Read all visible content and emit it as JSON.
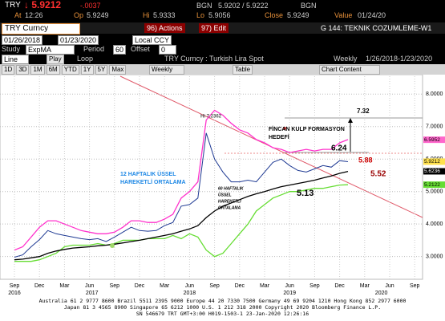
{
  "header": {
    "ticker": "TRY",
    "price": "↓ 5.9212",
    "change": "-.0037",
    "bid_source": "BGN",
    "bid_ask": "5.9202 / 5.9222",
    "ask_source": "BGN",
    "time_label": "At",
    "time": "12:26",
    "open_label": "Op",
    "open": "5.9249",
    "high_label": "Hi",
    "high": "5.9333",
    "low_label": "Lo",
    "low": "5.9056",
    "close_label": "Close",
    "close": "5.9249",
    "value_label": "Value",
    "value_date": "01/24/20"
  },
  "toolbar": {
    "security": "TRY Curncy",
    "actions": "96) Actions",
    "edit": "97) Edit",
    "page_title": "G 144: TEKNIK COZUMLEME-W1",
    "start": "01/26/2018",
    "end": "01/23/2020",
    "currency": "Local CCY",
    "study_label": "Study",
    "study": "ExpMA",
    "period_label": "Period",
    "period": "60",
    "offset_label": "Offset",
    "offset": "0",
    "line": "Line",
    "play": "Play",
    "loop": "Loop",
    "chart_title": "TRY Curncy : Turkish Lira Spot",
    "frequency": "Weekly",
    "range": "1/26/2018-1/23/2020",
    "ranges": [
      "1D",
      "3D",
      "1M",
      "6M",
      "YTD",
      "1Y",
      "5Y",
      "Max"
    ],
    "period_select": "Weekly",
    "table": "Table",
    "chart_content": "Chart Content"
  },
  "chart_data": {
    "type": "line",
    "categories": [
      "Sep",
      null,
      null,
      "Dec",
      null,
      null,
      "Mar",
      null,
      null,
      "Jun",
      null,
      null,
      "Sep",
      null,
      null,
      "Dec",
      null,
      null,
      "Mar",
      null,
      null,
      "Jun",
      null,
      null,
      "Sep",
      null,
      null,
      "Dec",
      null,
      null,
      "Mar",
      null,
      null,
      "Jun",
      null,
      null,
      "Sep",
      null,
      null,
      "Dec",
      null,
      null,
      "Mar",
      null,
      null,
      "Jun",
      null,
      null,
      "Sep"
    ],
    "year_labels": [
      "2016",
      "2017",
      "2018",
      "2019",
      "2020"
    ],
    "series": [
      {
        "color": "#ff33cc",
        "values": [
          3.2,
          3.3,
          3.6,
          3.9,
          4.1,
          4.1,
          4.0,
          3.9,
          3.8,
          3.75,
          3.7,
          3.7,
          3.75,
          3.9,
          4.1,
          4.1,
          4.05,
          4.05,
          4.15,
          4.3,
          4.8,
          5.0,
          5.3,
          7.2,
          7.5,
          7.35,
          7.1,
          6.9,
          6.8,
          6.6,
          6.5,
          6.35,
          6.3,
          6.2,
          6.25,
          6.3,
          6.25,
          6.3,
          6.3,
          6.5,
          6.6,
          null,
          null,
          null,
          null,
          null,
          null,
          null,
          null
        ]
      },
      {
        "color": "#66dd33",
        "values": [
          2.85,
          2.85,
          2.85,
          2.9,
          3.0,
          3.1,
          3.3,
          3.35,
          3.35,
          3.35,
          3.4,
          3.35,
          3.4,
          3.5,
          3.5,
          3.5,
          3.55,
          3.55,
          3.55,
          3.65,
          3.55,
          3.7,
          3.6,
          3.2,
          3.0,
          3.1,
          3.4,
          3.7,
          4.0,
          4.4,
          4.6,
          4.8,
          4.9,
          5.0,
          5.0,
          5.05,
          5.1,
          5.1,
          5.15,
          5.2,
          5.21,
          null,
          null,
          null,
          null,
          null,
          null,
          null,
          null
        ]
      },
      {
        "color": "#000000",
        "values": [
          2.9,
          2.92,
          2.96,
          3.0,
          3.1,
          3.17,
          3.22,
          3.26,
          3.28,
          3.3,
          3.33,
          3.35,
          3.38,
          3.42,
          3.46,
          3.5,
          3.55,
          3.6,
          3.65,
          3.7,
          3.78,
          3.85,
          3.95,
          4.2,
          4.4,
          4.55,
          4.65,
          4.75,
          4.85,
          4.93,
          5.0,
          5.08,
          5.15,
          5.2,
          5.25,
          5.3,
          5.35,
          5.42,
          5.48,
          5.56,
          5.62,
          null,
          null,
          null,
          null,
          null,
          null,
          null,
          null
        ]
      },
      {
        "color": "#1f3a93",
        "values": [
          2.98,
          3.05,
          3.3,
          3.52,
          3.8,
          3.7,
          3.65,
          3.6,
          3.55,
          3.52,
          3.55,
          3.46,
          3.6,
          3.75,
          3.9,
          3.8,
          3.78,
          3.8,
          3.95,
          4.05,
          4.55,
          4.6,
          4.8,
          6.8,
          6.0,
          5.6,
          5.3,
          5.3,
          5.35,
          5.3,
          5.6,
          5.9,
          6.0,
          5.8,
          5.65,
          5.6,
          5.7,
          5.8,
          5.75,
          5.95,
          5.92,
          null,
          null,
          null,
          null,
          null,
          null,
          null,
          null
        ]
      }
    ],
    "ylim": [
      2.3,
      8.55
    ],
    "yticks": [
      {
        "value": 3,
        "label": "3.0000"
      },
      {
        "value": 4,
        "label": "4.0000"
      },
      {
        "value": 5,
        "label": "5.0000"
      },
      {
        "value": 6,
        "label": "6.0000"
      },
      {
        "value": 7,
        "label": "7.0000"
      },
      {
        "value": 8,
        "label": "8.0000"
      }
    ],
    "grid": true,
    "right_labels": [
      {
        "value": 6.5952,
        "color": "#ff66cc"
      },
      {
        "value": 5.9212,
        "color": "#ffe14d"
      },
      {
        "value": 5.6236,
        "color": "#000000"
      },
      {
        "value": 5.2122,
        "color": "#66dd33"
      }
    ],
    "annotations": [
      {
        "text": "Hi 7.2362",
        "color": "#555555"
      },
      {
        "text": "7.32",
        "color": "#000000"
      },
      {
        "text": "FİNCAN KULP FORMASYON",
        "color": "#000000"
      },
      {
        "text": "HEDEFİ",
        "color": "#000000"
      },
      {
        "text": "6.24",
        "color": "#000000"
      },
      {
        "text": "5.88",
        "color": "#cc0000"
      },
      {
        "text": "5.52",
        "color": "#990000"
      },
      {
        "text": "5.13",
        "color": "#000000"
      },
      {
        "text": "12 HAFTALIK ÜSSEL",
        "color": "#1e88e5"
      },
      {
        "text": "HAREKETLİ ORTALAMA",
        "color": "#1e88e5"
      },
      {
        "text": "60 HAFTALIK",
        "color": "#000000"
      },
      {
        "text": "ÜSSEL",
        "color": "#000000"
      },
      {
        "text": "HAREKETLİ",
        "color": "#000000"
      },
      {
        "text": "ORTALAMA",
        "color": "#000000"
      }
    ]
  },
  "footer": {
    "lines": [
      "Australia 61 2 9777 8600 Brazil 5511 2395 9000 Europe 44 20 7330 7500 Germany 49 69 9204 1210 Hong Kong 852 2977 6000",
      "Japan 81 3 4565 8900 Singapore 65 6212 1000 U.S. 1 212 318 2000 Copyright 2020 Bloomberg Finance L.P.",
      "SN 546679 TRT GMT+3:00 H019-1503-1 23-Jan-2020 12:26:16"
    ]
  }
}
